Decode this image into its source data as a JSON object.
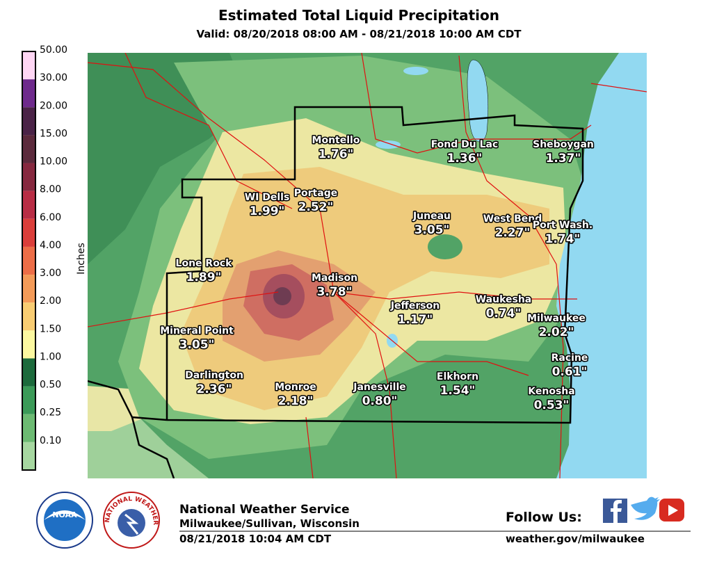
{
  "header": {
    "title": "Estimated Total Liquid Precipitation",
    "subtitle": "Valid: 08/20/2018 08:00 AM - 08/21/2018 10:00 AM CDT"
  },
  "legend": {
    "axis_label": "Inches",
    "labels": [
      "50.00",
      "30.00",
      "20.00",
      "15.00",
      "10.00",
      "8.00",
      "6.00",
      "4.00",
      "3.00",
      "2.00",
      "1.50",
      "1.00",
      "0.50",
      "0.25",
      "0.10"
    ]
  },
  "map": {
    "cities": [
      {
        "name": "Montello",
        "value": "1.76\""
      },
      {
        "name": "Fond Du Lac",
        "value": "1.36\""
      },
      {
        "name": "Sheboygan",
        "value": "1.37\""
      },
      {
        "name": "WI Dells",
        "value": "1.99\""
      },
      {
        "name": "Portage",
        "value": "2.52\""
      },
      {
        "name": "Juneau",
        "value": "3.05\""
      },
      {
        "name": "West Bend",
        "value": "2.27\""
      },
      {
        "name": "Port Wash.",
        "value": "1.74\""
      },
      {
        "name": "Lone Rock",
        "value": "1.89\""
      },
      {
        "name": "Madison",
        "value": "3.78\""
      },
      {
        "name": "Jefferson",
        "value": "1.17\""
      },
      {
        "name": "Waukesha",
        "value": "0.74\""
      },
      {
        "name": "Milwaukee",
        "value": "2.02\""
      },
      {
        "name": "Mineral Point",
        "value": "3.05\""
      },
      {
        "name": "Racine",
        "value": "0.61\""
      },
      {
        "name": "Darlington",
        "value": "2.36\""
      },
      {
        "name": "Monroe",
        "value": "2.18\""
      },
      {
        "name": "Janesville",
        "value": "0.80\""
      },
      {
        "name": "Elkhorn",
        "value": "1.54\""
      },
      {
        "name": "Kenosha",
        "value": "0.53\""
      }
    ]
  },
  "footer": {
    "noaa_logo": "NOAA",
    "nws_logo": "NATIONAL WEATHER SERVICE",
    "office": "National Weather Service",
    "location": "Milwaukee/Sullivan, Wisconsin",
    "issued": "08/21/2018 10:04 AM CDT",
    "follow": "Follow Us:",
    "url": "weather.gov/milwaukee"
  }
}
